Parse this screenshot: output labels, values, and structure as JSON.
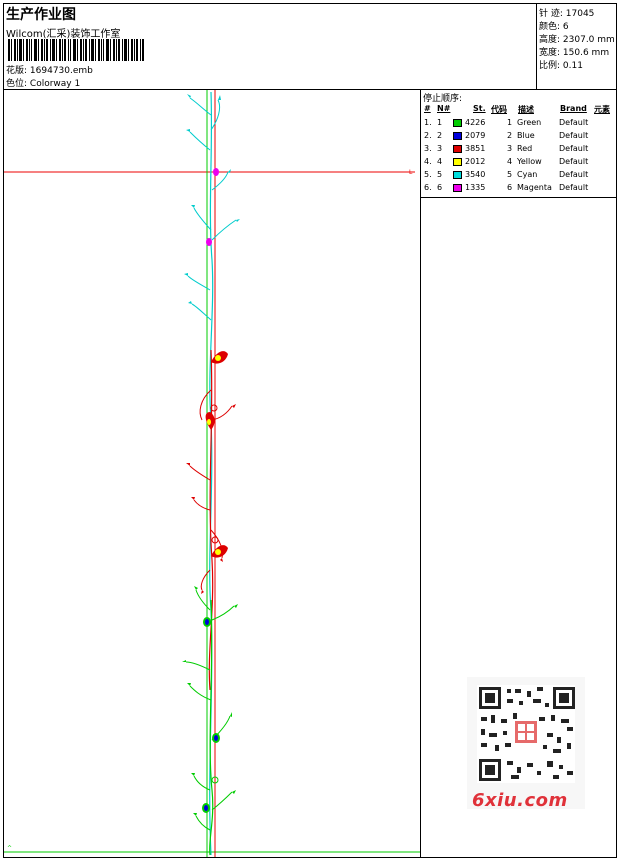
{
  "header": {
    "title": "生产作业图",
    "company": "Wilcom(汇采)装饰工作室",
    "design_label": "花版:",
    "design_value": "1694730.emb",
    "colorway_label": "色位:",
    "colorway_value": "Colorway 1"
  },
  "stats": [
    {
      "label": "针 迹:",
      "value": "17045"
    },
    {
      "label": "颜色:",
      "value": "6"
    },
    {
      "label": "高度:",
      "value": "2307.0 mm"
    },
    {
      "label": "宽度:",
      "value": "150.6 mm"
    },
    {
      "label": "比例:",
      "value": "0.11"
    }
  ],
  "legend": {
    "title": "停止顺序:",
    "headers": {
      "num": "#",
      "n": "N#",
      "st": "St.",
      "code": "代码",
      "desc": "描述",
      "brand": "Brand",
      "elem": "元素"
    },
    "rows": [
      {
        "num": "1.",
        "n": "1",
        "st": "4226",
        "code": "1",
        "desc": "Green",
        "brand": "Default",
        "color": "#00cc00"
      },
      {
        "num": "2.",
        "n": "2",
        "st": "2079",
        "code": "2",
        "desc": "Blue",
        "brand": "Default",
        "color": "#0000dd"
      },
      {
        "num": "3.",
        "n": "3",
        "st": "3851",
        "code": "3",
        "desc": "Red",
        "brand": "Default",
        "color": "#dd0000"
      },
      {
        "num": "4.",
        "n": "4",
        "st": "2012",
        "code": "4",
        "desc": "Yellow",
        "brand": "Default",
        "color": "#ffff00"
      },
      {
        "num": "5.",
        "n": "5",
        "st": "3540",
        "code": "5",
        "desc": "Cyan",
        "brand": "Default",
        "color": "#00dddd"
      },
      {
        "num": "6.",
        "n": "6",
        "st": "1335",
        "code": "6",
        "desc": "Magenta",
        "brand": "Default",
        "color": "#ee00ee"
      }
    ]
  },
  "watermark": {
    "site": "6xiu.com"
  }
}
